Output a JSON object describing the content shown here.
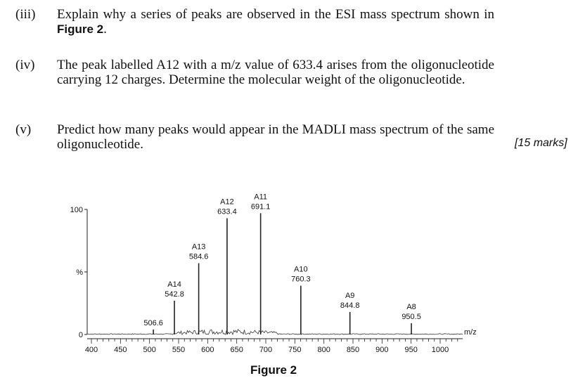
{
  "questions": [
    {
      "num": "(iii)",
      "text_before": "Explain why a series of peaks are observed in the ESI mass spectrum shown in ",
      "figure_ref": "Figure 2",
      "text_after": "."
    },
    {
      "num": "(iv)",
      "text": "The peak labelled A12 with a m/z value of 633.4 arises from the oligonucleotide carrying 12 charges. Determine the molecular weight of the oligonucleotide."
    },
    {
      "num": "(v)",
      "text": "Predict how many peaks would appear in the MADLI mass spectrum of the same oligonucleotide."
    }
  ],
  "marks": "[15 marks]",
  "figure_caption": "Figure 2",
  "chart_data": {
    "type": "line",
    "title": "",
    "xlabel": "m/z",
    "ylabel": "%",
    "xlim": [
      380,
      1040
    ],
    "ylim": [
      0,
      100
    ],
    "x_ticks": [
      400,
      450,
      500,
      550,
      600,
      650,
      700,
      750,
      800,
      850,
      900,
      950,
      1000
    ],
    "y_tick_labels": [
      "0",
      "%",
      "100"
    ],
    "peaks": [
      {
        "name": "",
        "mz": 506.6,
        "mz_label": "506.6",
        "intensity": 4
      },
      {
        "name": "A14",
        "mz": 542.8,
        "mz_label": "542.8",
        "intensity": 27
      },
      {
        "name": "A13",
        "mz": 584.6,
        "mz_label": "584.6",
        "intensity": 57
      },
      {
        "name": "A12",
        "mz": 633.4,
        "mz_label": "633.4",
        "intensity": 93
      },
      {
        "name": "A11",
        "mz": 691.1,
        "mz_label": "691.1",
        "intensity": 97
      },
      {
        "name": "A10",
        "mz": 760.3,
        "mz_label": "760.3",
        "intensity": 39
      },
      {
        "name": "A9",
        "mz": 844.8,
        "mz_label": "844.8",
        "intensity": 18
      },
      {
        "name": "A8",
        "mz": 950.5,
        "mz_label": "950.5",
        "intensity": 9
      }
    ]
  }
}
